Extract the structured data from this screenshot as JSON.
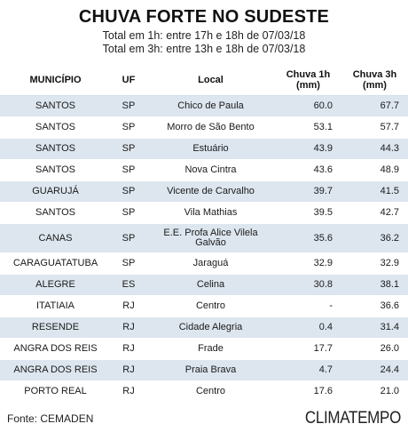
{
  "header": {
    "title": "CHUVA FORTE NO SUDESTE",
    "subtitle_1h": "Total em 1h: entre 17h e 18h de 07/03/18",
    "subtitle_3h": "Total em 3h: entre 13h e 18h de 07/03/18"
  },
  "table": {
    "columns": {
      "municipio": "MUNICÍPIO",
      "uf": "UF",
      "local": "Local",
      "chuva1h": "Chuva 1h",
      "chuva1h_unit": "(mm)",
      "chuva3h": "Chuva 3h",
      "chuva3h_unit": "(mm)"
    },
    "rows": [
      {
        "municipio": "SANTOS",
        "uf": "SP",
        "local": "Chico de Paula",
        "h1": "60.0",
        "h3": "67.7"
      },
      {
        "municipio": "SANTOS",
        "uf": "SP",
        "local": "Morro de São Bento",
        "h1": "53.1",
        "h3": "57.7"
      },
      {
        "municipio": "SANTOS",
        "uf": "SP",
        "local": "Estuário",
        "h1": "43.9",
        "h3": "44.3"
      },
      {
        "municipio": "SANTOS",
        "uf": "SP",
        "local": "Nova Cintra",
        "h1": "43.6",
        "h3": "48.9"
      },
      {
        "municipio": "GUARUJÁ",
        "uf": "SP",
        "local": "Vicente de Carvalho",
        "h1": "39.7",
        "h3": "41.5"
      },
      {
        "municipio": "SANTOS",
        "uf": "SP",
        "local": "Vila Mathias",
        "h1": "39.5",
        "h3": "42.7"
      },
      {
        "municipio": "CANAS",
        "uf": "SP",
        "local": "E.E. Profa Alice Vilela",
        "local_line2": "Galvão",
        "h1": "35.6",
        "h3": "36.2"
      },
      {
        "municipio": "CARAGUATATUBA",
        "uf": "SP",
        "local": "Jaraguá",
        "h1": "32.9",
        "h3": "32.9"
      },
      {
        "municipio": "ALEGRE",
        "uf": "ES",
        "local": "Celina",
        "h1": "30.8",
        "h3": "38.1"
      },
      {
        "municipio": "ITATIAIA",
        "uf": "RJ",
        "local": "Centro",
        "h1": "-",
        "h3": "36.6"
      },
      {
        "municipio": "RESENDE",
        "uf": "RJ",
        "local": "Cidade Alegria",
        "h1": "0.4",
        "h3": "31.4"
      },
      {
        "municipio": "ANGRA DOS REIS",
        "uf": "RJ",
        "local": "Frade",
        "h1": "17.7",
        "h3": "26.0"
      },
      {
        "municipio": "ANGRA DOS REIS",
        "uf": "RJ",
        "local": "Praia Brava",
        "h1": "4.7",
        "h3": "24.4"
      },
      {
        "municipio": "PORTO REAL",
        "uf": "RJ",
        "local": "Centro",
        "h1": "17.6",
        "h3": "21.0"
      }
    ]
  },
  "footer": {
    "source": "Fonte: CEMADEN",
    "logo": "CLIMATEMPO"
  }
}
